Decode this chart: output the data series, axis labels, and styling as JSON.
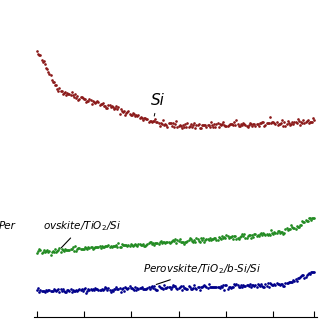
{
  "background_color": "#ffffff",
  "series": {
    "Si": {
      "color": "#8B1A1A",
      "dot_size": 1.8,
      "label": "Si"
    },
    "Perovskite_TiO2_Si": {
      "color": "#228B22",
      "dot_size": 1.8
    },
    "Perovskite_TiO2_bSi_Si": {
      "color": "#00008B",
      "dot_size": 1.8
    }
  },
  "ylim": [
    0.0,
    1.0
  ],
  "n_points": 250
}
